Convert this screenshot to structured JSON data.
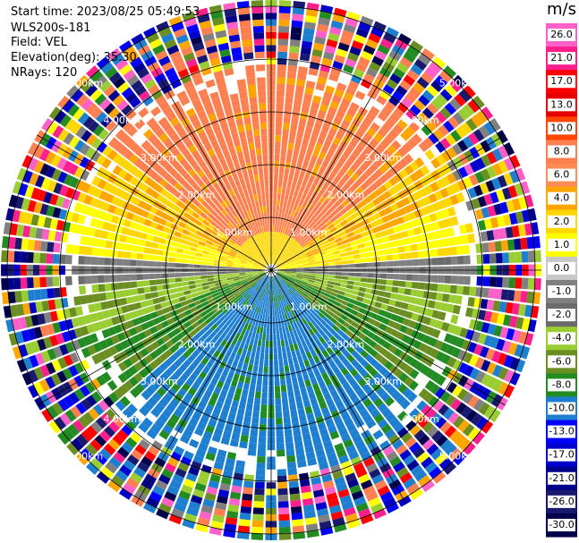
{
  "header": {
    "start_time": "Start time: 2023/08/25 05:49:53",
    "instrument": "WLS200s-181",
    "field": "Field: VEL",
    "elevation": "Elevation(deg): 35.30",
    "nrays": "NRays: 120"
  },
  "colorbar": {
    "unit": "m/s",
    "ticks": [
      "26.0",
      "21.0",
      "17.0",
      "13.0",
      "10.0",
      "8.0",
      "6.0",
      "4.0",
      "2.0",
      "1.0",
      "0.0",
      "-1.0",
      "-2.0",
      "-4.0",
      "-6.0",
      "-8.0",
      "-10.0",
      "-13.0",
      "-17.0",
      "-21.0",
      "-26.0",
      "-30.0"
    ],
    "colors": [
      "#ff5fc8",
      "#ff1f8c",
      "#ff0000",
      "#e60000",
      "#ff4500",
      "#ff7f50",
      "#ff8c55",
      "#ffa500",
      "#ffd700",
      "#ffff00",
      "#c8c8c8",
      "#808080",
      "#6b6b6b",
      "#9acd32",
      "#6b8e23",
      "#228b22",
      "#1e7fd0",
      "#0000ff",
      "#0000cd",
      "#00008b",
      "#191970",
      "#00004d"
    ]
  },
  "chart_data": {
    "type": "ppi",
    "range_rings_km": [
      1,
      2,
      3,
      4,
      5
    ],
    "ring_labels": [
      "1.00km",
      "2.00km",
      "3.00km",
      "4.00km",
      "5.00km"
    ],
    "nrays": 120,
    "field": "VEL",
    "colorbar_range": [
      -30,
      26
    ]
  }
}
